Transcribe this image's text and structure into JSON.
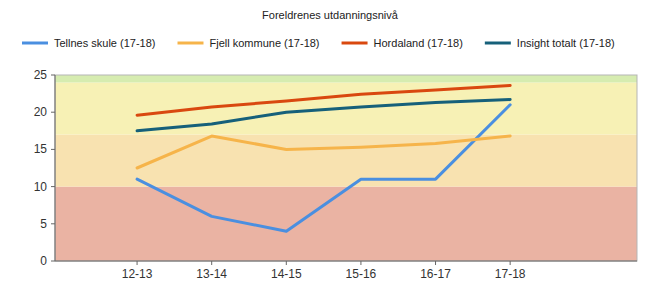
{
  "chart_data": {
    "type": "line",
    "title": "Foreldrenes utdanningsnivå",
    "categories": [
      "12-13",
      "13-14",
      "14-15",
      "15-16",
      "16-17",
      "17-18"
    ],
    "series": [
      {
        "name": "Tellnes skule (17-18)",
        "color": "#4a8fe0",
        "values": [
          11,
          6,
          4,
          11,
          11,
          21
        ]
      },
      {
        "name": "Fjell kommune (17-18)",
        "color": "#f6b44a",
        "values": [
          12.5,
          16.8,
          15,
          15.3,
          15.8,
          16.8
        ]
      },
      {
        "name": "Hordaland (17-18)",
        "color": "#d9480f",
        "values": [
          19.6,
          20.7,
          21.5,
          22.4,
          23,
          23.6
        ]
      },
      {
        "name": "Insight totalt (17-18)",
        "color": "#16607a",
        "values": [
          17.5,
          18.4,
          20,
          20.7,
          21.3,
          21.7
        ]
      }
    ],
    "bands": [
      {
        "from": 0,
        "to": 10,
        "color": "#eab3a3"
      },
      {
        "from": 10,
        "to": 17,
        "color": "#f8e2b0"
      },
      {
        "from": 17,
        "to": 24,
        "color": "#f7f1b5"
      },
      {
        "from": 24,
        "to": 25,
        "color": "#d6ecb0"
      }
    ],
    "ylim": [
      0,
      25
    ],
    "yticks": [
      0,
      5,
      10,
      15,
      20,
      25
    ],
    "grid": false,
    "legend": "top"
  }
}
